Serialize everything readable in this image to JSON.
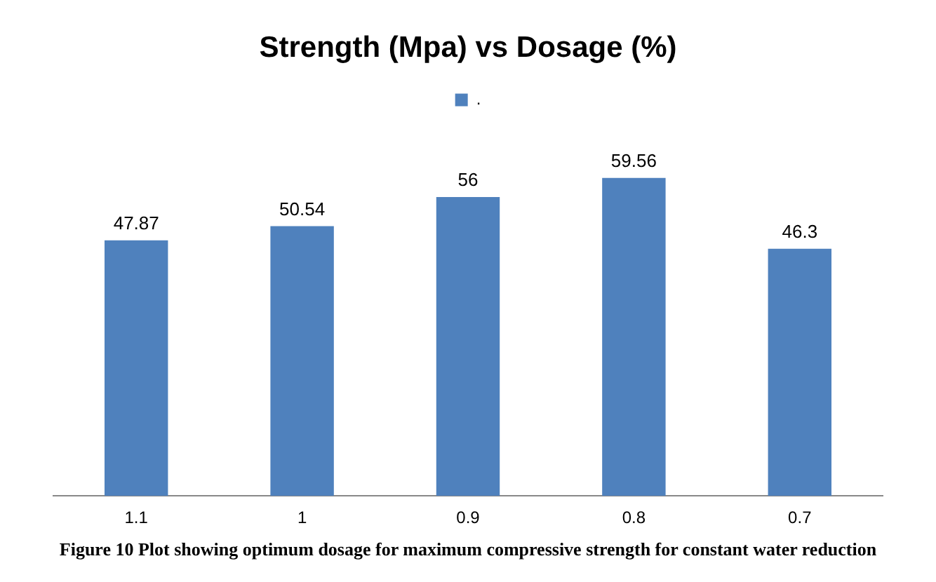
{
  "chart_data": {
    "type": "bar",
    "title": "Strength (Mpa) vs Dosage (%)",
    "categories": [
      "1.1",
      "1",
      "0.9",
      "0.8",
      "0.7"
    ],
    "series": [
      {
        "name": ".",
        "color": "#4f81bd",
        "values": [
          47.87,
          50.54,
          56,
          59.56,
          46.3
        ]
      }
    ],
    "data_labels": true,
    "legend": "top",
    "grid": false,
    "tick_labels": "x",
    "annotations": [
      "Figure 10 Plot showing optimum dosage for maximum compressive strength for constant water reduction"
    ]
  }
}
